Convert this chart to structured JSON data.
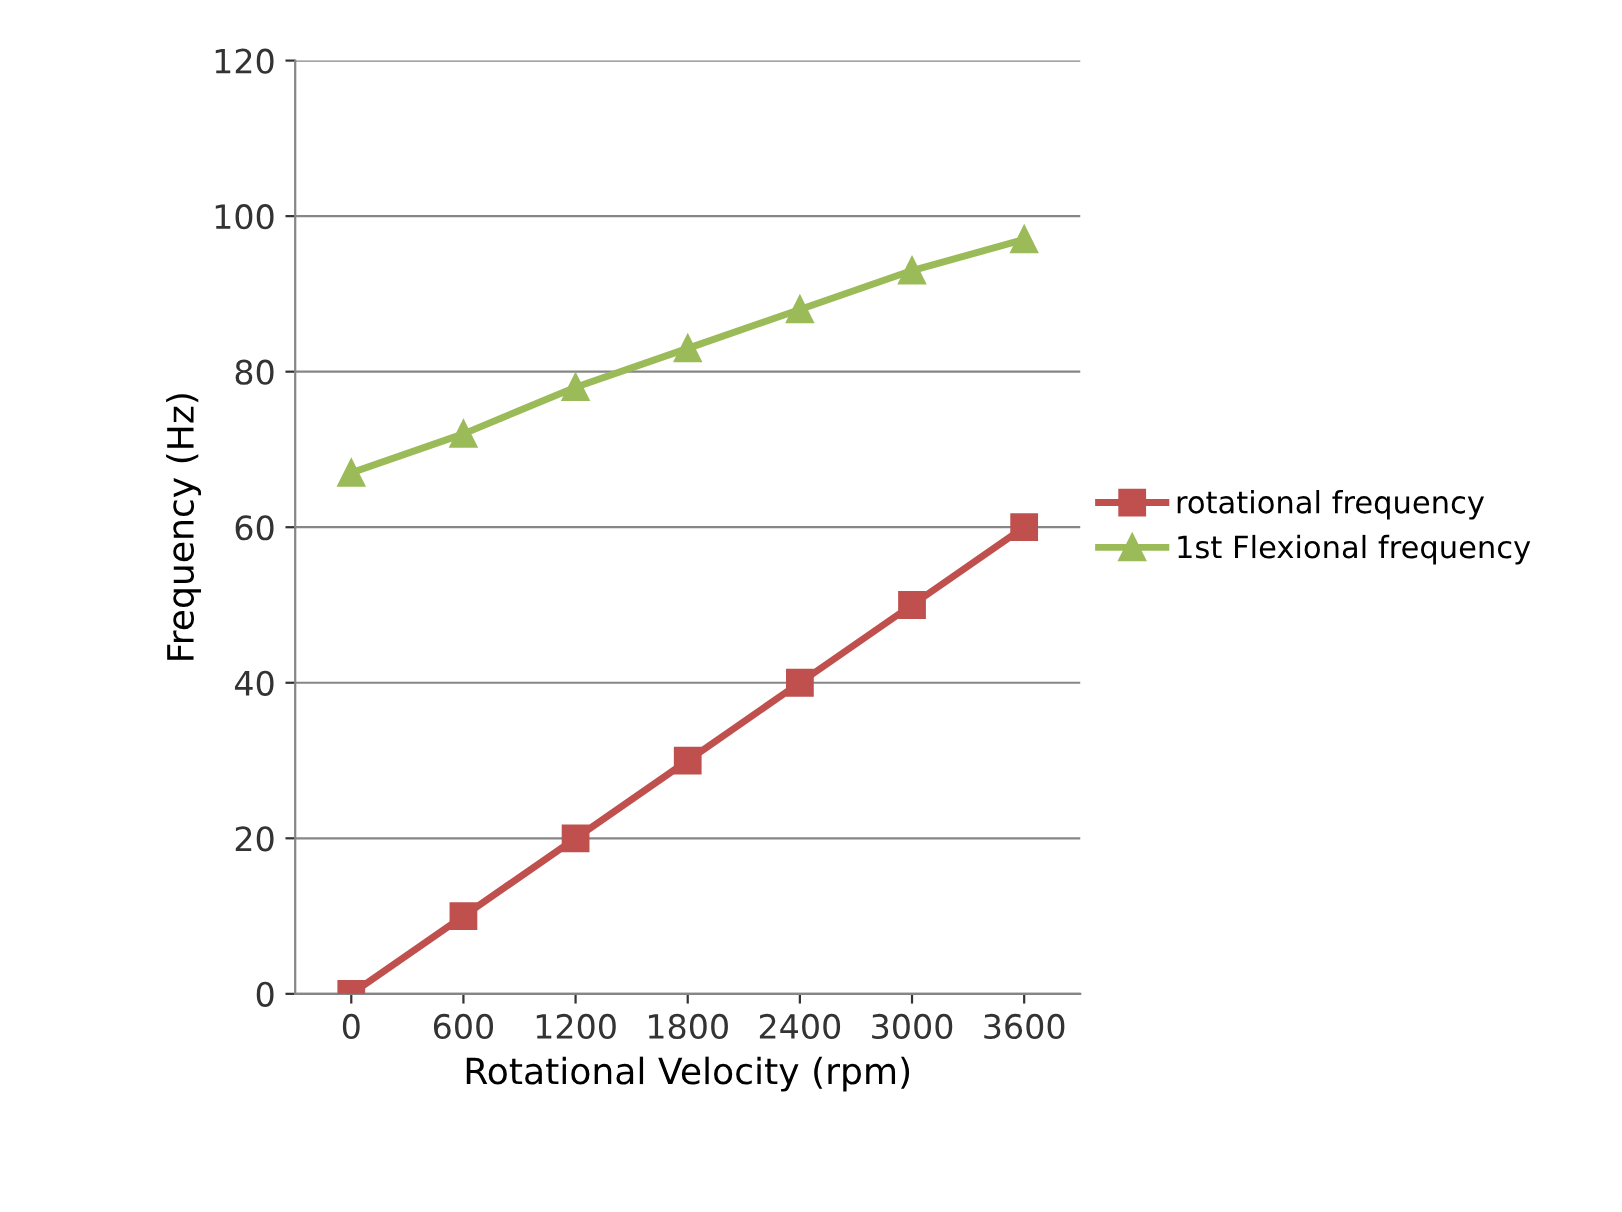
{
  "chart_data": {
    "type": "line",
    "xlabel": "Rotational Velocity (rpm)",
    "ylabel": "Frequency (Hz)",
    "categories": [
      "0",
      "600",
      "1200",
      "1800",
      "2400",
      "3000",
      "3600"
    ],
    "series": [
      {
        "name": "rotational frequency",
        "color": "#c0504d",
        "marker": "square",
        "values": [
          0,
          10,
          20,
          30,
          40,
          50,
          60
        ]
      },
      {
        "name": "1st Flexional frequency",
        "color": "#9bbb59",
        "marker": "triangle",
        "values": [
          67,
          72,
          78,
          83,
          88,
          93,
          97
        ]
      }
    ],
    "ylim": [
      0,
      120
    ],
    "yticks": [
      0,
      20,
      40,
      60,
      80,
      100,
      120
    ],
    "grid": "y",
    "legend": "right",
    "line_style": "solid"
  }
}
